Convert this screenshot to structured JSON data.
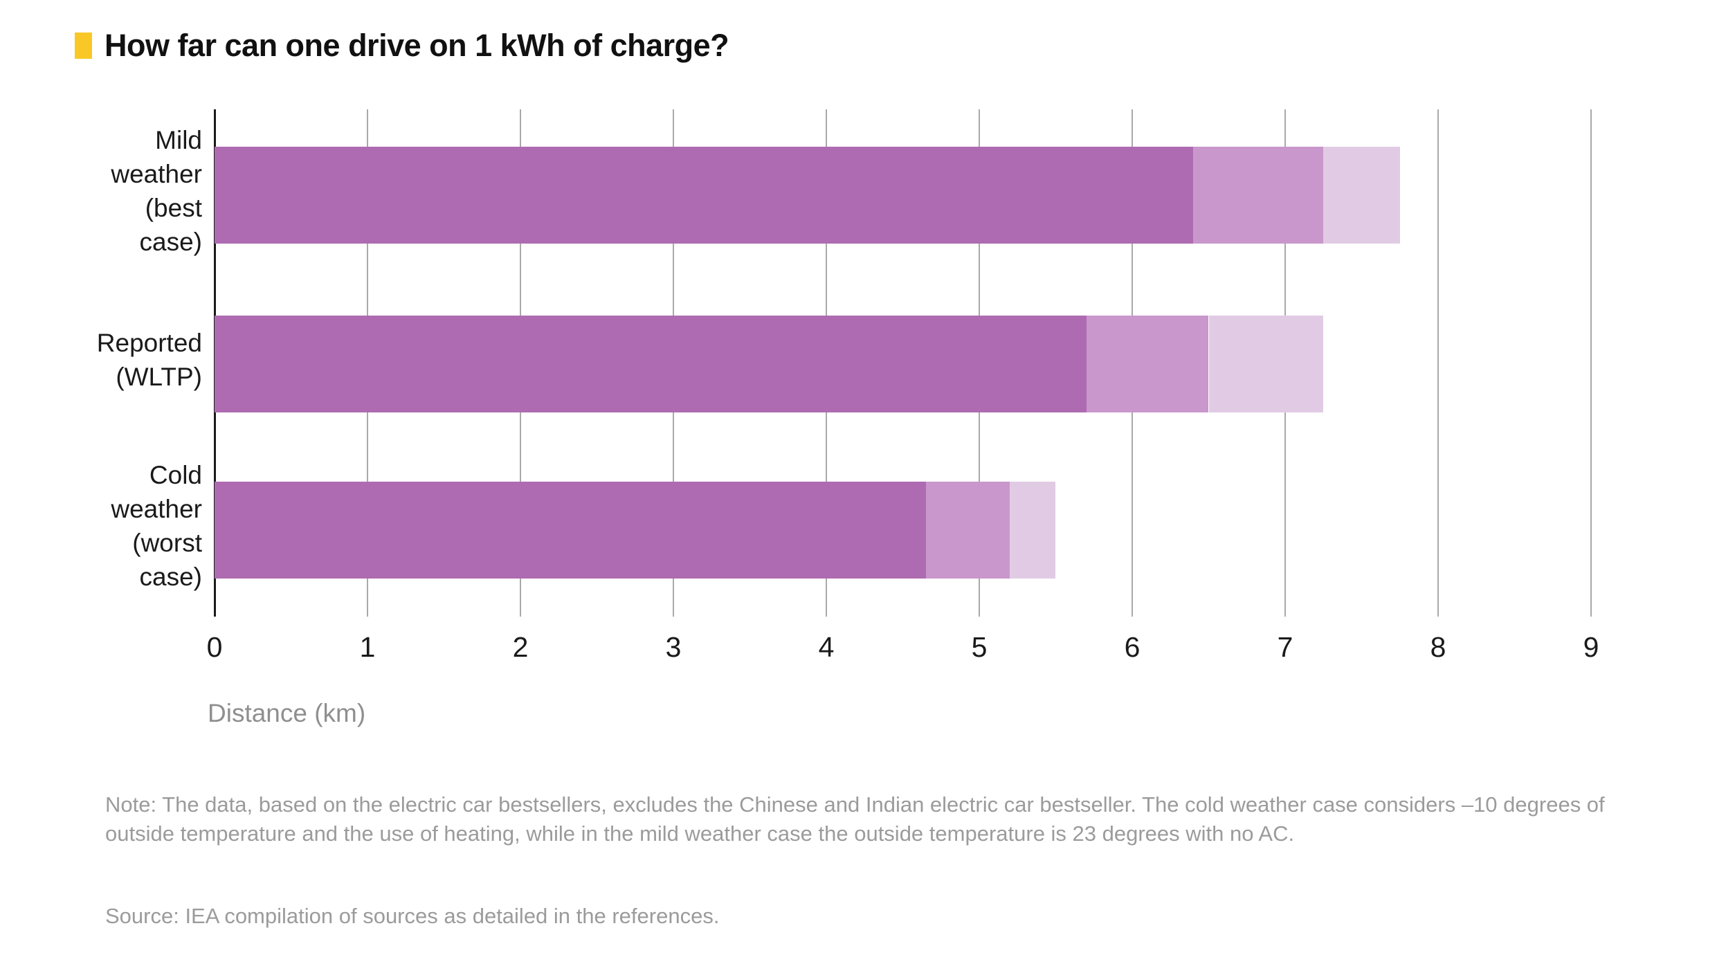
{
  "theme": {
    "accent_yellow": "#f9c826",
    "axis_color": "#1a1a1a",
    "gridline_color": "#a9a9a9",
    "muted_text_color": "#9b9b9b"
  },
  "header": {
    "title": "How far can one drive on 1 kWh of charge?"
  },
  "chart_data": {
    "type": "bar",
    "orientation": "horizontal",
    "stacked": true,
    "title": "How far can one drive on 1 kWh of charge?",
    "xlabel": "Distance (km)",
    "ylabel": "",
    "xlim": [
      0,
      9
    ],
    "xticks": [
      0,
      1,
      2,
      3,
      4,
      5,
      6,
      7,
      8,
      9
    ],
    "grid": "vertical",
    "legend": "none",
    "categories": [
      "Mild weather (best case)",
      "Reported (WLTP)",
      "Cold weather (worst case)"
    ],
    "category_label_lines": [
      [
        "Mild",
        "weather",
        "(best",
        "case)"
      ],
      [
        "Reported",
        "(WLTP)"
      ],
      [
        "Cold",
        "weather",
        "(worst",
        "case)"
      ]
    ],
    "series": [
      {
        "name": "segment-1",
        "color": "#ae6bb1",
        "values": [
          6.4,
          5.7,
          4.65
        ]
      },
      {
        "name": "segment-2",
        "color": "#c997cc",
        "values": [
          0.85,
          0.8,
          0.55
        ]
      },
      {
        "name": "segment-3",
        "color": "#e1cbe4",
        "values": [
          0.5,
          0.75,
          0.3
        ]
      }
    ],
    "totals": [
      7.75,
      7.25,
      5.5
    ]
  },
  "footnotes": {
    "note": "Note: The data, based on the electric car bestsellers, excludes the Chinese and Indian electric car bestseller. The cold weather case considers –10 degrees of outside temperature and the use of heating, while in the mild weather case the outside temperature is 23 degrees with no AC.",
    "source": "Source: IEA compilation of sources as detailed in the references."
  }
}
